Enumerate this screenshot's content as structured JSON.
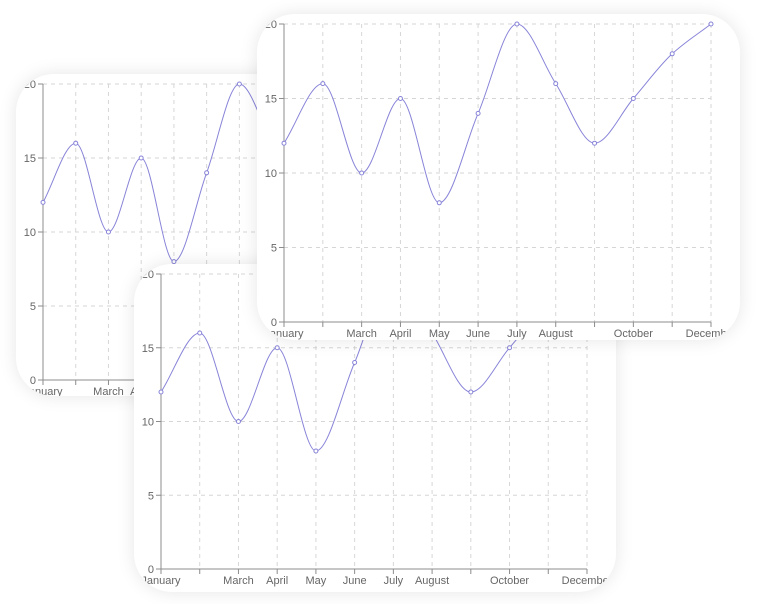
{
  "colors": {
    "series": "#8884d8"
  },
  "chart_data": [
    {
      "type": "line",
      "title": "",
      "xlabel": "",
      "ylabel": "",
      "categories": [
        "January",
        "February",
        "March",
        "April",
        "May",
        "June",
        "July",
        "August",
        "September",
        "October",
        "November",
        "December"
      ],
      "x_tick_labels": [
        "January",
        "March",
        "April",
        "May",
        "June",
        "July",
        "August",
        "October",
        "December"
      ],
      "series": [
        {
          "values": [
            12,
            16,
            10,
            15,
            8,
            14,
            20,
            16,
            12,
            15,
            18,
            20
          ]
        }
      ],
      "ylim": [
        0,
        20
      ],
      "y_ticks": [
        "0",
        "5",
        "10",
        "15",
        "20"
      ],
      "grid": true,
      "legend": "none",
      "curve": "smooth"
    },
    {
      "type": "line",
      "title": "",
      "xlabel": "",
      "ylabel": "",
      "categories": [
        "January",
        "February",
        "March",
        "April",
        "May",
        "June",
        "July",
        "August",
        "September",
        "October",
        "November",
        "December"
      ],
      "x_tick_labels": [
        "January",
        "March",
        "April",
        "May",
        "June",
        "July",
        "August",
        "October",
        "December"
      ],
      "series": [
        {
          "values": [
            12,
            16,
            10,
            15,
            8,
            14,
            20,
            16,
            12,
            15,
            18,
            20
          ]
        }
      ],
      "ylim": [
        0,
        20
      ],
      "y_ticks": [
        "0",
        "5",
        "10",
        "15",
        "20"
      ],
      "grid": true,
      "legend": "none",
      "curve": "smooth"
    },
    {
      "type": "line",
      "title": "",
      "xlabel": "",
      "ylabel": "",
      "categories": [
        "January",
        "February",
        "March",
        "April",
        "May",
        "June",
        "July",
        "August",
        "September",
        "October",
        "November",
        "December"
      ],
      "x_tick_labels": [
        "January",
        "March",
        "April",
        "May",
        "June",
        "July",
        "August",
        "October",
        "December"
      ],
      "series": [
        {
          "values": [
            12,
            16,
            10,
            15,
            8,
            14,
            20,
            16,
            12,
            15,
            18,
            20
          ]
        }
      ],
      "ylim": [
        0,
        20
      ],
      "y_ticks": [
        "0",
        "5",
        "10",
        "15",
        "20"
      ],
      "grid": true,
      "legend": "none",
      "curve": "smooth"
    }
  ]
}
